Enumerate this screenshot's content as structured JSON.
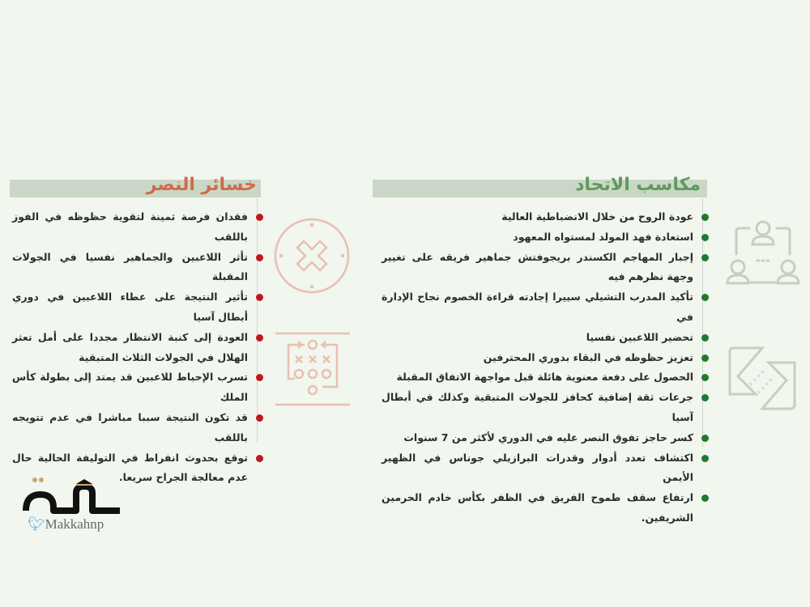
{
  "colors": {
    "gains_accent": "#5e9a5e",
    "losses_accent": "#d26a4a",
    "gains_bullet": "#1e7a2e",
    "losses_bullet": "#c0161e",
    "header_bar": "#cbd7c6",
    "background": "#f1f6ee"
  },
  "gains": {
    "title": "مكاسب الاتحاد",
    "items": [
      "عودة الروح من خلال الانضباطية العالية",
      "استعادة فهد المولد لمستواه المعهود",
      "إجبار المهاجم الكسندر بريجوفتش جماهير فريقه على تغيير وجهة نظرهم فيه",
      "تأكيد المدرب التشيلي سييرا إجادته قراءة الخصوم نجاح الإدارة في",
      "تحضير اللاعبين نفسيا",
      "تعزيز حظوظه في البقاء بدوري المحترفين",
      "الحصول على دفعة معنوية هائلة قبل مواجهة الاتفاق المقبلة",
      "جرعات ثقة إضافية كحافز للجولات المتبقية وكذلك في أبطال آسيا",
      "كسر حاجز تفوق النصر عليه في الدوري لأكثر من 7 سنوات",
      "اكتشاف تعدد أدوار وقدرات البرازيلي جوناس في الظهير الأيمن",
      "ارتفاع سقف طموح الفريق في الظفر بكأس خادم الحرمين الشريفين."
    ]
  },
  "losses": {
    "title": "خسائر النصر",
    "items": [
      "فقدان فرصة ثمينة لتقوية حظوظه في الفوز باللقب",
      "تأثر اللاعبين والجماهير نفسيا في الجولات المقبلة",
      "تأثير النتيجة على عطاء اللاعبين في دوري أبطال آسيا",
      "العودة إلى كنبة الانتظار مجددا على أمل تعثر الهلال في الجولات الثلاث المتبقية",
      "تسرب الإحباط للاعبين قد يمتد إلى بطولة كأس الملك",
      "قد تكون النتيجة سببا مباشرا في عدم تتويجه باللقب",
      "توقع بحدوث انفراط في التوليفة الحالية حال عدم معالجة الجراح سريعا."
    ]
  },
  "logo": {
    "text": "مكة",
    "handle": "Makkahnp",
    "icon": "twitter-bird-icon"
  }
}
